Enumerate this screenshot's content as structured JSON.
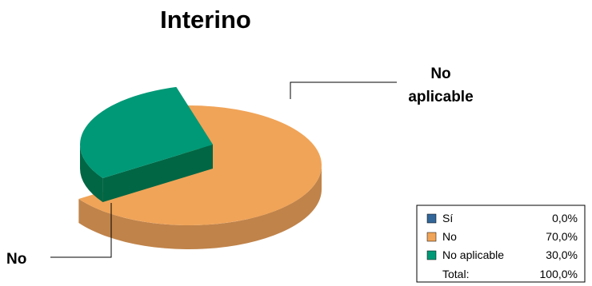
{
  "chart_data": {
    "type": "pie",
    "title": "Interino",
    "categories": [
      "Sí",
      "No",
      "No aplicable"
    ],
    "values": [
      0.0,
      70.0,
      30.0
    ],
    "value_labels": [
      "0,0%",
      "70,0%",
      "30,0%"
    ],
    "colors": {
      "Sí": "#336699",
      "No": "#F0A458",
      "No aplicable": "#009977"
    },
    "side_colors": {
      "No": "#C0834A",
      "No aplicable": "#006644"
    },
    "slice_labels": {
      "No": "No",
      "No aplicable": [
        "No",
        "aplicable"
      ]
    },
    "exploded_slice": "No aplicable",
    "three_d": true,
    "legend": {
      "placement": "bottom-right",
      "total_label": "Total:",
      "total_value": "100,0%"
    }
  }
}
